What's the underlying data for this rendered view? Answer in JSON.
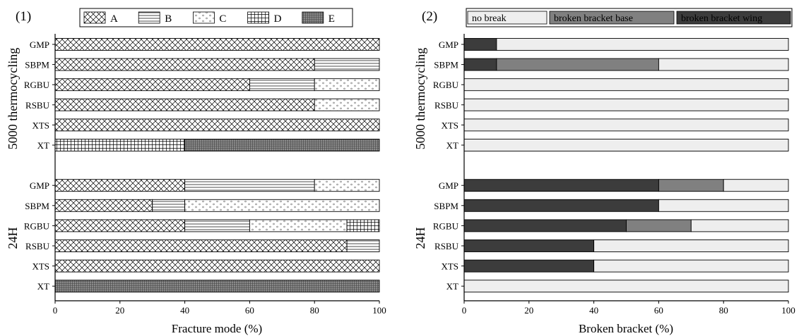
{
  "chart_data": [
    {
      "panel_label": "(1)",
      "type": "bar",
      "orientation": "horizontal",
      "stacked": true,
      "xlabel": "Fracture mode (%)",
      "xlim": [
        0,
        100
      ],
      "xticks": [
        "0",
        "20",
        "40",
        "60",
        "80",
        "100"
      ],
      "group_labels": [
        "5000 thermocycling",
        "24H"
      ],
      "legend_position": "top",
      "series": [
        {
          "name": "A",
          "pattern": "crosshatch"
        },
        {
          "name": "B",
          "pattern": "horizontal-lines"
        },
        {
          "name": "C",
          "pattern": "dots"
        },
        {
          "name": "D",
          "pattern": "grid"
        },
        {
          "name": "E",
          "pattern": "dense-grid"
        }
      ],
      "groups": [
        {
          "label": "5000 thermocycling",
          "rows": [
            {
              "label": "GMP",
              "values": [
                100,
                0,
                0,
                0,
                0
              ]
            },
            {
              "label": "SBPM",
              "values": [
                80,
                20,
                0,
                0,
                0
              ]
            },
            {
              "label": "RGBU",
              "values": [
                60,
                20,
                20,
                0,
                0
              ]
            },
            {
              "label": "RSBU",
              "values": [
                80,
                0,
                20,
                0,
                0
              ]
            },
            {
              "label": "XTS",
              "values": [
                100,
                0,
                0,
                0,
                0
              ]
            },
            {
              "label": "XT",
              "values": [
                0,
                0,
                0,
                40,
                60
              ]
            }
          ]
        },
        {
          "label": "24H",
          "rows": [
            {
              "label": "GMP",
              "values": [
                40,
                40,
                20,
                0,
                0
              ]
            },
            {
              "label": "SBPM",
              "values": [
                30,
                10,
                60,
                0,
                0
              ]
            },
            {
              "label": "RGBU",
              "values": [
                40,
                20,
                30,
                10,
                0
              ]
            },
            {
              "label": "RSBU",
              "values": [
                90,
                10,
                0,
                0,
                0
              ]
            },
            {
              "label": "XTS",
              "values": [
                100,
                0,
                0,
                0,
                0
              ]
            },
            {
              "label": "XT",
              "values": [
                0,
                0,
                0,
                0,
                100
              ]
            }
          ]
        }
      ]
    },
    {
      "panel_label": "(2)",
      "type": "bar",
      "orientation": "horizontal",
      "stacked": true,
      "xlabel": "Broken bracket (%)",
      "xlim": [
        0,
        100
      ],
      "xticks": [
        "0",
        "20",
        "40",
        "60",
        "80",
        "100"
      ],
      "group_labels": [
        "5000 thermocycling",
        "24H"
      ],
      "legend_position": "top",
      "series": [
        {
          "name": "no break",
          "color": "#eeeeee"
        },
        {
          "name": "broken bracket base",
          "color": "#808080"
        },
        {
          "name": "broken bracket wing",
          "color": "#3c3c3c"
        }
      ],
      "stack_order": [
        2,
        1,
        0
      ],
      "groups": [
        {
          "label": "5000 thermocycling",
          "rows": [
            {
              "label": "GMP",
              "values": [
                90,
                0,
                10
              ]
            },
            {
              "label": "SBPM",
              "values": [
                40,
                50,
                10
              ]
            },
            {
              "label": "RGBU",
              "values": [
                100,
                0,
                0
              ]
            },
            {
              "label": "RSBU",
              "values": [
                100,
                0,
                0
              ]
            },
            {
              "label": "XTS",
              "values": [
                100,
                0,
                0
              ]
            },
            {
              "label": "XT",
              "values": [
                100,
                0,
                0
              ]
            }
          ]
        },
        {
          "label": "24H",
          "rows": [
            {
              "label": "GMP",
              "values": [
                20,
                20,
                60
              ]
            },
            {
              "label": "SBPM",
              "values": [
                40,
                0,
                60
              ]
            },
            {
              "label": "RGBU",
              "values": [
                30,
                20,
                50
              ]
            },
            {
              "label": "RSBU",
              "values": [
                60,
                0,
                40
              ]
            },
            {
              "label": "XTS",
              "values": [
                60,
                0,
                40
              ]
            },
            {
              "label": "XT",
              "values": [
                100,
                0,
                0
              ]
            }
          ]
        }
      ]
    }
  ]
}
